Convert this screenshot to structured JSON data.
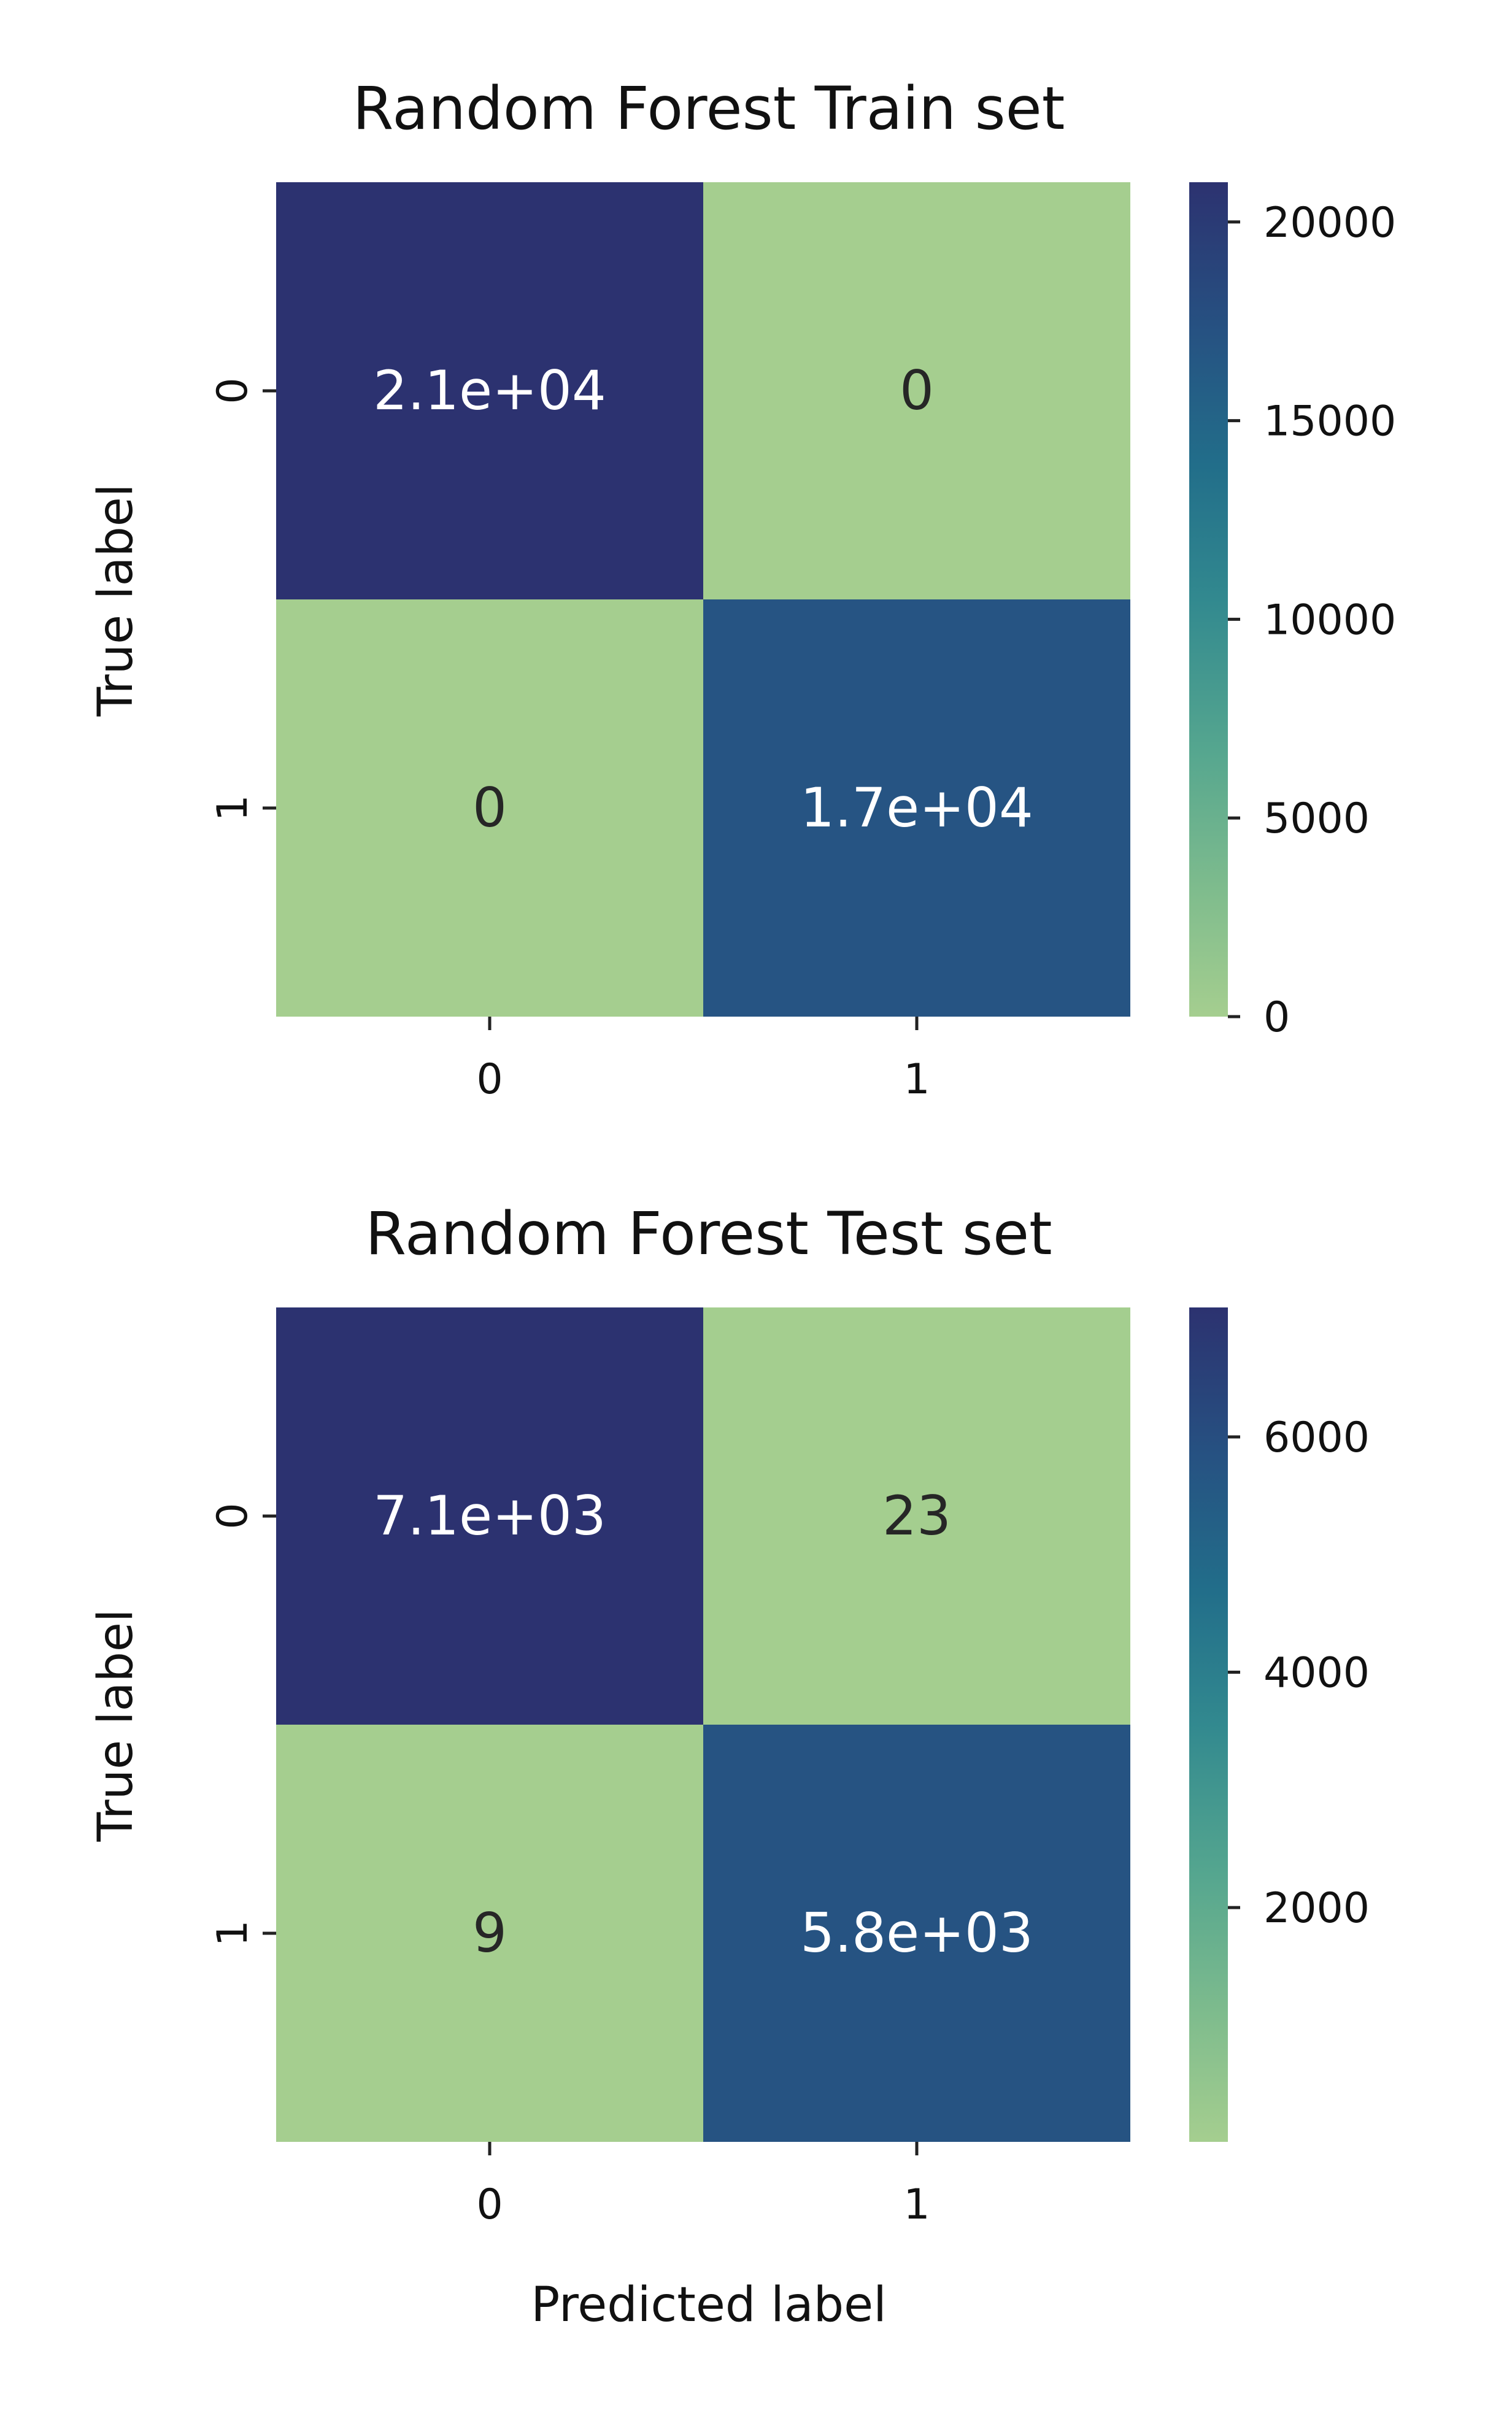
{
  "figure": {
    "xlabel": "Predicted label"
  },
  "chart_data": [
    {
      "type": "heatmap",
      "title": "Random Forest Train set",
      "xlabel": "",
      "ylabel": "True label",
      "x_categories": [
        "0",
        "1"
      ],
      "y_categories": [
        "0",
        "1"
      ],
      "values": [
        [
          21000,
          0
        ],
        [
          0,
          17000
        ]
      ],
      "annotations": [
        [
          "2.1e+04",
          "0"
        ],
        [
          "0",
          "1.7e+04"
        ]
      ],
      "colorbar": {
        "range": [
          0,
          21000
        ],
        "ticks": [
          0,
          5000,
          10000,
          15000,
          20000
        ],
        "tick_labels": [
          "0",
          "5000",
          "10000",
          "15000",
          "20000"
        ]
      },
      "colormap": "crest",
      "colors": {
        "low": "#a5ce8f",
        "high": "#2c3270"
      },
      "grid": false
    },
    {
      "type": "heatmap",
      "title": "Random Forest Test set",
      "xlabel": "Predicted label",
      "ylabel": "True label",
      "x_categories": [
        "0",
        "1"
      ],
      "y_categories": [
        "0",
        "1"
      ],
      "values": [
        [
          7100,
          23
        ],
        [
          9,
          5800
        ]
      ],
      "annotations": [
        [
          "7.1e+03",
          "23"
        ],
        [
          "9",
          "5.8e+03"
        ]
      ],
      "colorbar": {
        "range": [
          9,
          7100
        ],
        "ticks": [
          2000,
          4000,
          6000
        ],
        "tick_labels": [
          "2000",
          "4000",
          "6000"
        ]
      },
      "colormap": "crest",
      "colors": {
        "low": "#a5ce8f",
        "high": "#2c3270"
      },
      "grid": false
    }
  ]
}
